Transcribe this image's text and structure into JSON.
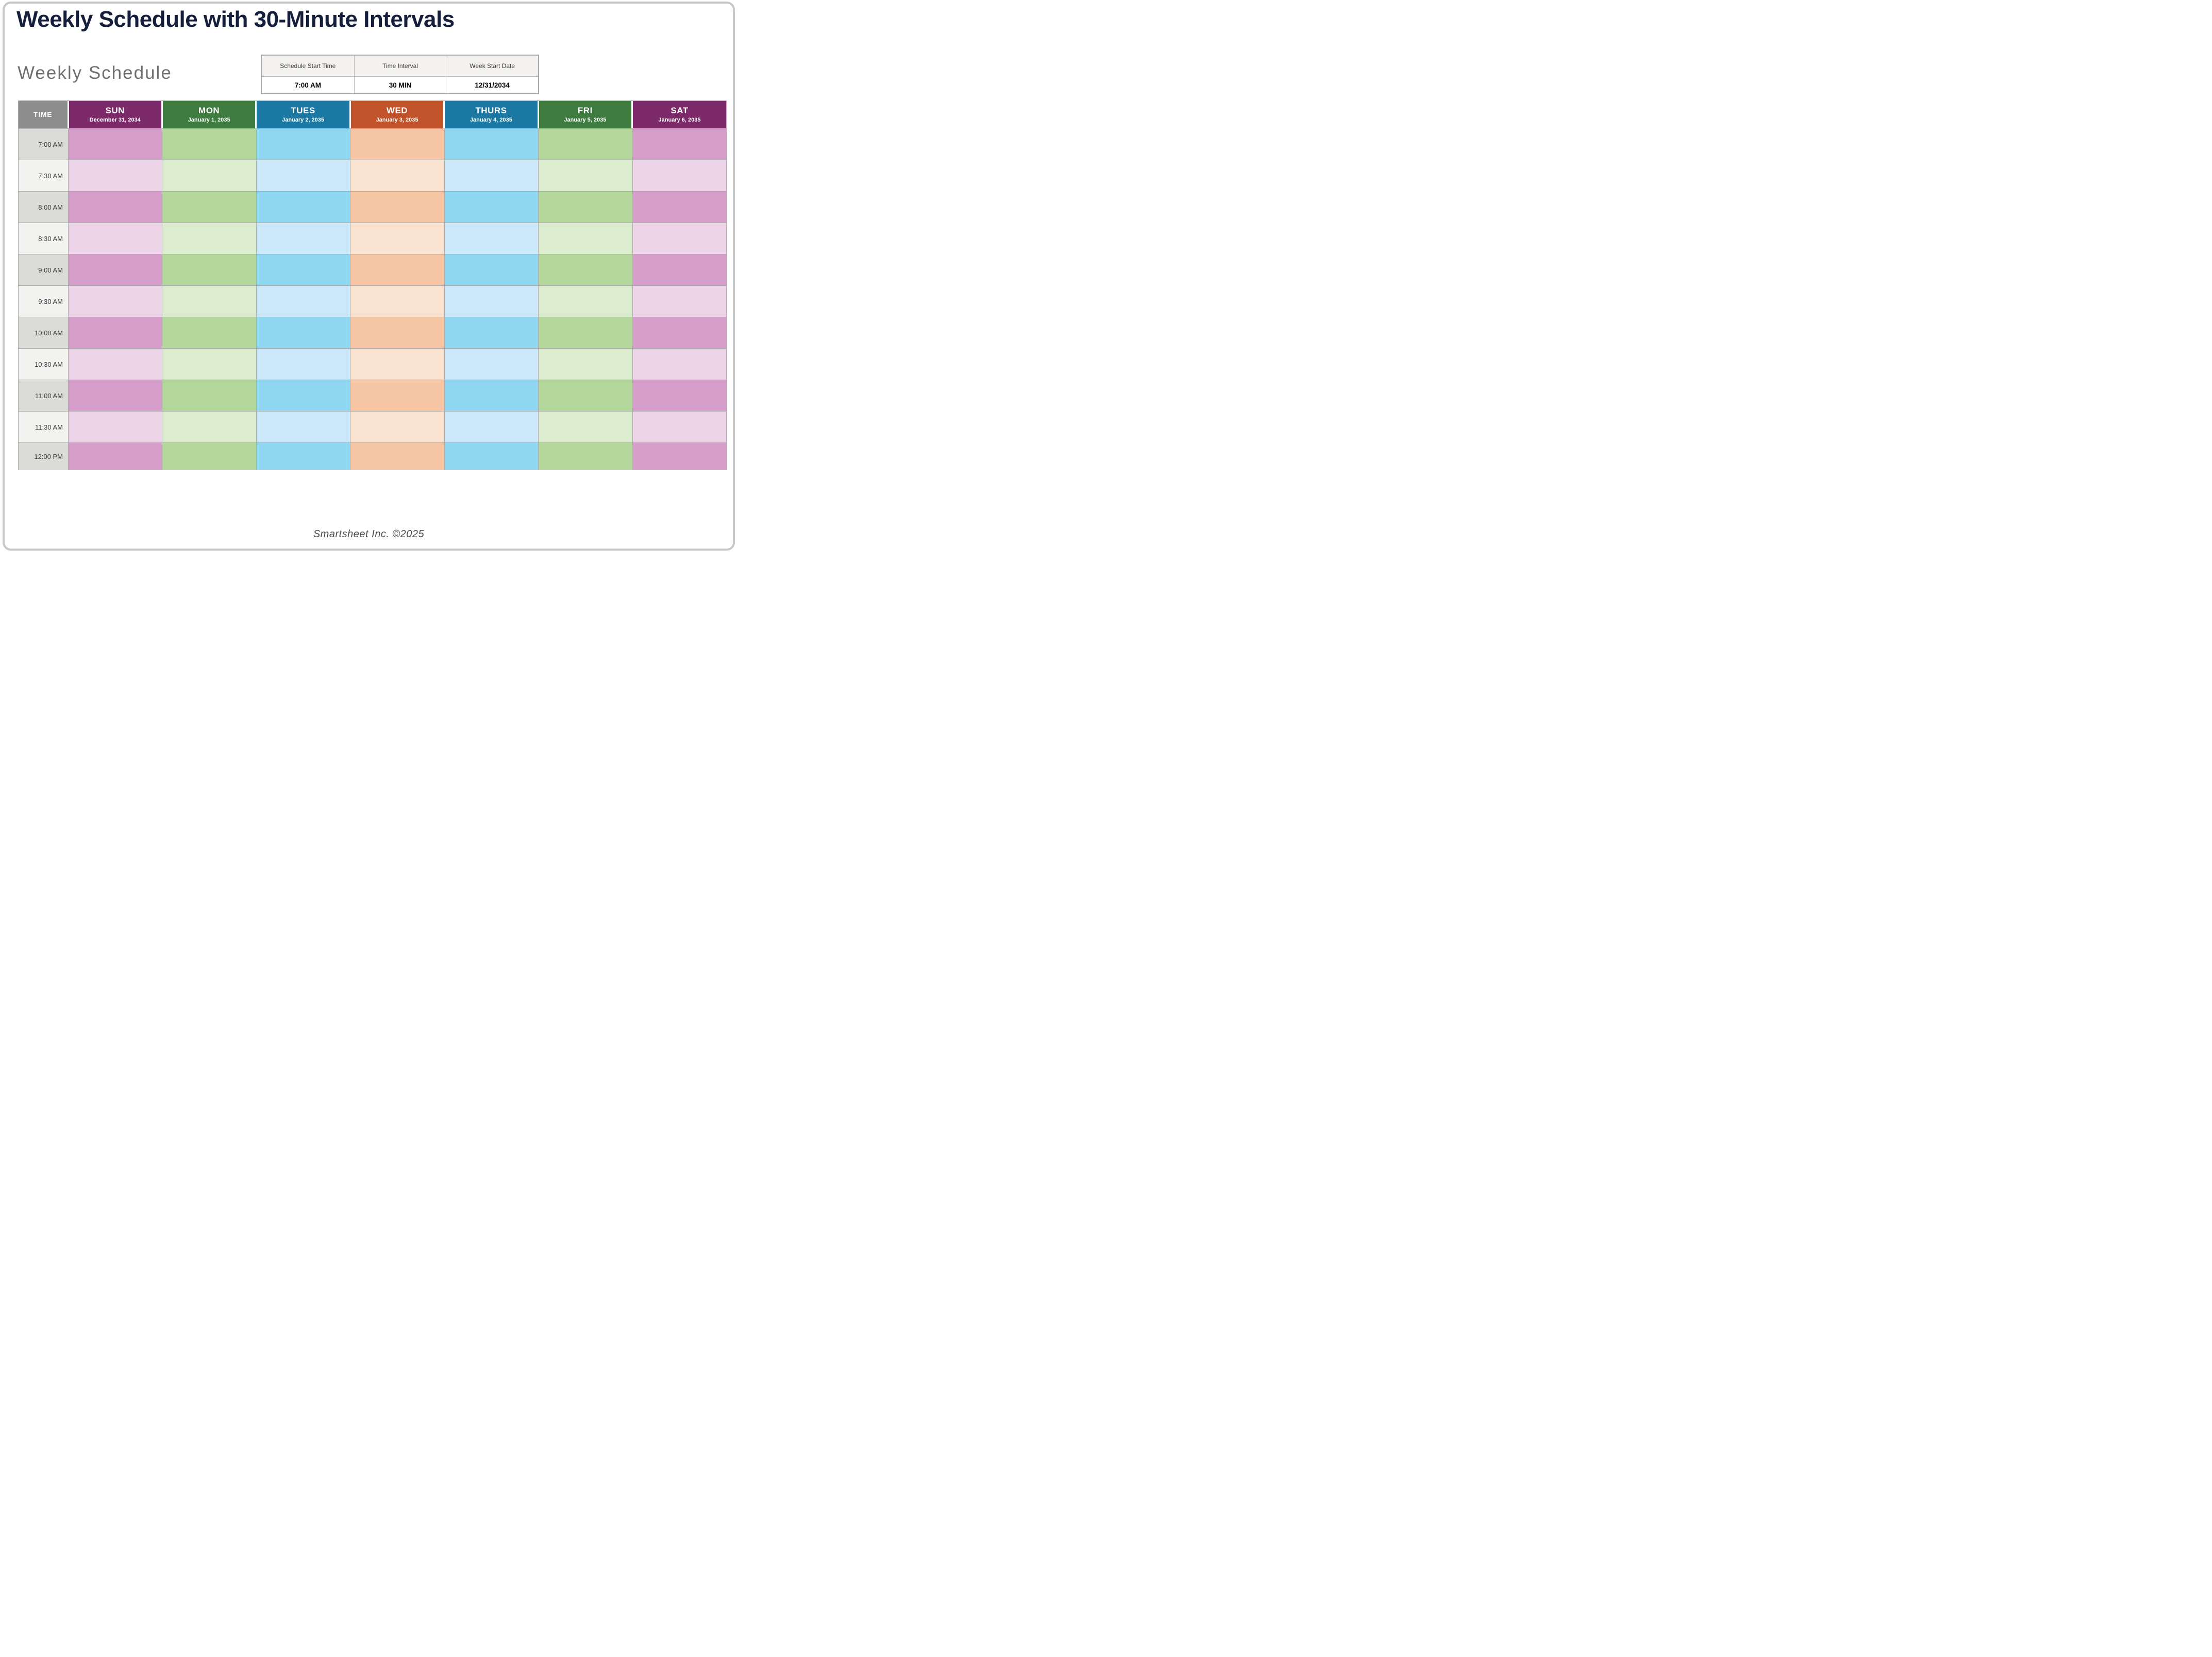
{
  "title": "Weekly Schedule with 30-Minute Intervals",
  "subtitle": "Weekly Schedule",
  "settings": {
    "columns": [
      {
        "label": "Schedule Start Time",
        "value": "7:00 AM"
      },
      {
        "label": "Time Interval",
        "value": "30 MIN"
      },
      {
        "label": "Week Start Date",
        "value": "12/31/2034"
      }
    ]
  },
  "schedule": {
    "time_header": "TIME",
    "times": [
      "7:00 AM",
      "7:30 AM",
      "8:00 AM",
      "8:30 AM",
      "9:00 AM",
      "9:30 AM",
      "10:00 AM",
      "10:30 AM",
      "11:00 AM",
      "11:30 AM",
      "12:00 PM"
    ],
    "time_column_colors": {
      "header": "#8D8D8D",
      "row_dark": "#DBDBD8",
      "row_light": "#F2F2F0"
    },
    "days": [
      {
        "name": "SUN",
        "date": "December 31, 2034",
        "header_color": "#7B2968",
        "cell_dark": "#D69ECA",
        "cell_light": "#EED4E8"
      },
      {
        "name": "MON",
        "date": "January 1, 2035",
        "header_color": "#3E7B3E",
        "cell_dark": "#B4D79C",
        "cell_light": "#DCECCF"
      },
      {
        "name": "TUES",
        "date": "January 2, 2035",
        "header_color": "#1A78A2",
        "cell_dark": "#90D7F2",
        "cell_light": "#CBE9FA"
      },
      {
        "name": "WED",
        "date": "January 3, 2035",
        "header_color": "#C0532A",
        "cell_dark": "#F5C5A3",
        "cell_light": "#FBE3D1"
      },
      {
        "name": "THURS",
        "date": "January 4, 2035",
        "header_color": "#1A78A2",
        "cell_dark": "#90D7F2",
        "cell_light": "#CBE9FA"
      },
      {
        "name": "FRI",
        "date": "January 5, 2035",
        "header_color": "#3E7B3E",
        "cell_dark": "#B4D79C",
        "cell_light": "#DCECCF"
      },
      {
        "name": "SAT",
        "date": "January 6, 2035",
        "header_color": "#7B2968",
        "cell_dark": "#D69ECA",
        "cell_light": "#EED4E8"
      }
    ],
    "grid_line_color": "#ACACAC"
  },
  "footer": {
    "credit": "Smartsheet Inc. ©2025"
  },
  "colors": {
    "title_text": "#151F3C",
    "subtitle_text": "#6F6F6F",
    "page_border": "#C8C8C8",
    "settings_header_bg": "#F3F2F1",
    "footer_text": "#4B4B4B"
  }
}
